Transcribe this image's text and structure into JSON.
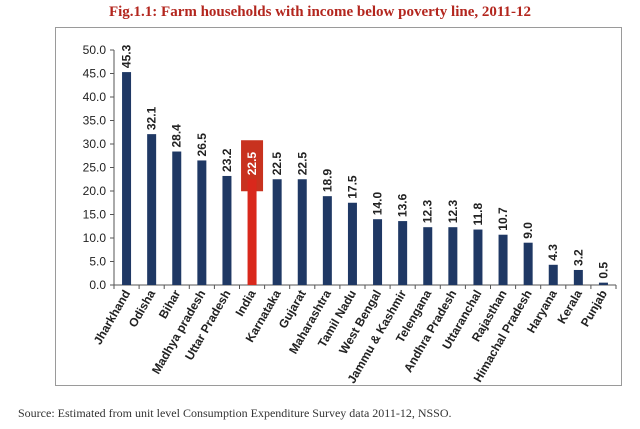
{
  "title": "Fig.1.1: Farm households with income below poverty line, 2011-12",
  "source": "Source: Estimated from unit level Consumption Expenditure Survey data 2011-12, NSSO.",
  "colors": {
    "bar": "#1f3864",
    "highlight": "#d9281c",
    "highlight_box": "#c8321f",
    "title": "#b3261e"
  },
  "chart_data": {
    "type": "bar",
    "title": "Fig.1.1: Farm households with income below poverty line, 2011-12",
    "xlabel": "",
    "ylabel": "",
    "ylim": [
      0,
      50
    ],
    "yticks": [
      "0.0",
      "5.0",
      "10.0",
      "15.0",
      "20.0",
      "25.0",
      "30.0",
      "35.0",
      "40.0",
      "45.0",
      "50.0"
    ],
    "grid": false,
    "highlight": "India",
    "categories": [
      "Jharkhand",
      "Odisha",
      "Bihar",
      "Madhya pradesh",
      "Uttar Pradesh",
      "India",
      "Karnataka",
      "Gujarat",
      "Maharashtra",
      "Tamil Nadu",
      "West Bengal",
      "Jammu & Kashmir",
      "Telengana",
      "Andhra Pradesh",
      "Uttaranchal",
      "Rajasthan",
      "Himachal Pradesh",
      "Haryana",
      "Kerala",
      "Punjab"
    ],
    "values": [
      45.3,
      32.1,
      28.4,
      26.5,
      23.2,
      22.5,
      22.5,
      22.5,
      18.9,
      17.5,
      14.0,
      13.6,
      12.3,
      12.3,
      11.8,
      10.7,
      9.0,
      4.3,
      3.2,
      0.5
    ],
    "value_labels": [
      "45.3",
      "32.1",
      "28.4",
      "26.5",
      "23.2",
      "22.5",
      "22.5",
      "22.5",
      "18.9",
      "17.5",
      "14.0",
      "13.6",
      "12.3",
      "12.3",
      "11.8",
      "10.7",
      "9.0",
      "4.3",
      "3.2",
      "0.5"
    ]
  }
}
